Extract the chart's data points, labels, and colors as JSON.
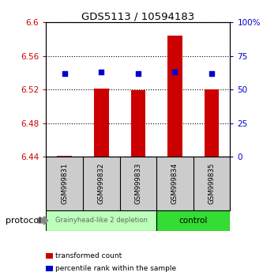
{
  "title": "GDS5113 / 10594183",
  "samples": [
    "GSM999831",
    "GSM999832",
    "GSM999833",
    "GSM999834",
    "GSM999835"
  ],
  "bar_values": [
    6.441,
    6.521,
    6.519,
    6.584,
    6.52
  ],
  "bar_base": 6.44,
  "percentile_values": [
    62,
    63,
    62,
    63,
    62
  ],
  "ylim_left": [
    6.44,
    6.6
  ],
  "ylim_right": [
    0,
    100
  ],
  "yticks_left": [
    6.44,
    6.48,
    6.52,
    6.56,
    6.6
  ],
  "yticks_right": [
    0,
    25,
    50,
    75,
    100
  ],
  "ytick_labels_left": [
    "6.44",
    "6.48",
    "6.52",
    "6.56",
    "6.6"
  ],
  "ytick_labels_right": [
    "0",
    "25",
    "50",
    "75",
    "100%"
  ],
  "bar_color": "#cc0000",
  "percentile_color": "#0000cc",
  "bar_width": 0.4,
  "group1_label": "Grainyhead-like 2 depletion",
  "group1_samples": [
    0,
    1,
    2
  ],
  "group1_color": "#bbffbb",
  "group1_text_color": "#666666",
  "group2_label": "control",
  "group2_samples": [
    3,
    4
  ],
  "group2_color": "#33dd33",
  "group2_text_color": "#000000",
  "protocol_label": "protocol",
  "legend_items": [
    {
      "label": "transformed count",
      "color": "#cc0000"
    },
    {
      "label": "percentile rank within the sample",
      "color": "#0000cc"
    }
  ],
  "grid_color": "#000000",
  "background_color": "#ffffff",
  "left_axis_color": "#cc0000",
  "right_axis_color": "#0000cc",
  "figsize": [
    3.33,
    3.54
  ],
  "dpi": 100
}
